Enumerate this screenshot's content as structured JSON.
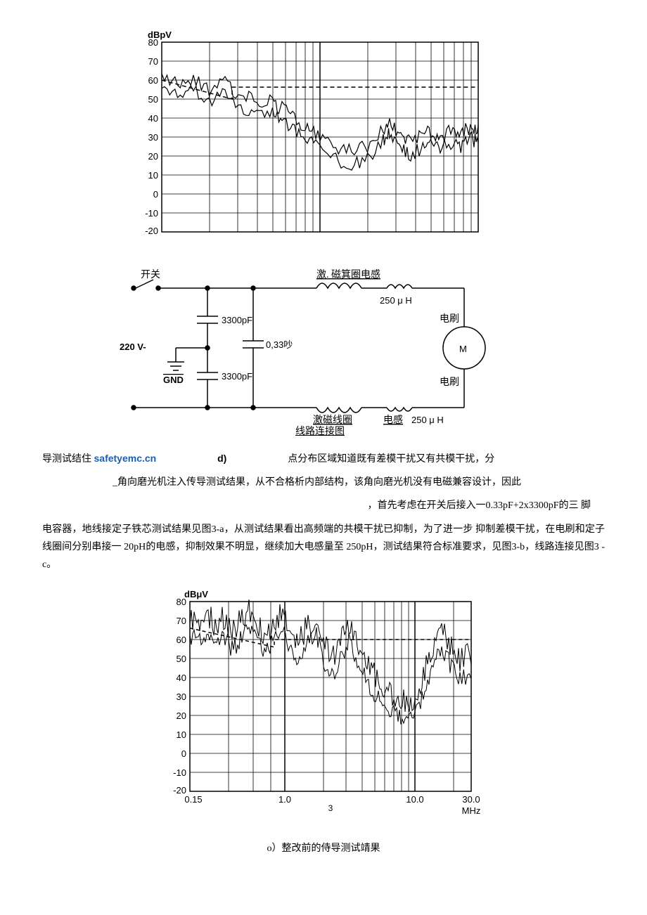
{
  "chart1": {
    "type": "line",
    "ylabel": "dBpV",
    "ylim": [
      -20,
      80
    ],
    "ytick_step": 10,
    "yticks": [
      -20,
      -10,
      0,
      10,
      20,
      30,
      40,
      50,
      60,
      70,
      80
    ],
    "x_decades": [
      0.01,
      0.1,
      1
    ],
    "background_color": "#ffffff",
    "grid_color": "#000000",
    "line_color": "#000000",
    "line_width": 1.2,
    "series_upper": [
      [
        0,
        60
      ],
      [
        5,
        58
      ],
      [
        10,
        62
      ],
      [
        15,
        55
      ],
      [
        20,
        58
      ],
      [
        25,
        52
      ],
      [
        30,
        50
      ],
      [
        35,
        48
      ],
      [
        38,
        45
      ],
      [
        42,
        40
      ],
      [
        46,
        35
      ],
      [
        50,
        30
      ],
      [
        55,
        25
      ],
      [
        60,
        22
      ],
      [
        65,
        25
      ],
      [
        70,
        35
      ],
      [
        72,
        38
      ],
      [
        75,
        32
      ],
      [
        78,
        28
      ],
      [
        82,
        30
      ],
      [
        85,
        33
      ],
      [
        88,
        30
      ],
      [
        92,
        35
      ],
      [
        95,
        32
      ],
      [
        98,
        36
      ],
      [
        100,
        34
      ]
    ],
    "series_lower": [
      [
        0,
        54
      ],
      [
        5,
        52
      ],
      [
        10,
        56
      ],
      [
        15,
        49
      ],
      [
        20,
        52
      ],
      [
        25,
        46
      ],
      [
        30,
        44
      ],
      [
        35,
        42
      ],
      [
        38,
        38
      ],
      [
        42,
        33
      ],
      [
        46,
        28
      ],
      [
        50,
        23
      ],
      [
        55,
        18
      ],
      [
        60,
        15
      ],
      [
        65,
        18
      ],
      [
        70,
        28
      ],
      [
        72,
        32
      ],
      [
        75,
        25
      ],
      [
        78,
        21
      ],
      [
        82,
        23
      ],
      [
        85,
        26
      ],
      [
        88,
        23
      ],
      [
        92,
        28
      ],
      [
        95,
        25
      ],
      [
        98,
        29
      ],
      [
        100,
        27
      ]
    ],
    "fontsize_axis": 13
  },
  "circuit": {
    "labels": {
      "switch": "开关",
      "exciter_inductor": "激. 磁箕圈电感",
      "inductor_value": "250 μ H",
      "brush": "电刷",
      "motor": "M",
      "cap1": "3300pF",
      "cap2": "0,33吵",
      "cap3": "3300pF",
      "voltage": "220 V-",
      "gnd": "GND",
      "exciter_coil": "激磁线圈",
      "inductor": "电感",
      "inductor_value2": "250 μ H",
      "bottom_caption": "线路连接图"
    },
    "line_color": "#000000",
    "line_width": 1.5
  },
  "text": {
    "para1_prefix": "导测试结住  ",
    "link_text": "safetyemc.cn",
    "fig_label_d": "d)",
    "para1_mid": "点分布区域知道既有差模干扰又有共模干扰，分",
    "para1_line2": "_角向磨光机注入传导测试结果，从不合格析内部结构，该角向磨光机没有电磁兼容设计，因此",
    "para1_line3": "，首先考虑在开关后接入一0.33pF+2x3300pF的三 脚",
    "para2": "电容器，地线接定子铁芯测试结果见图3-a，从测试结果看出高频端的共模干扰已抑制，为了进一步 抑制差模干扰，在电刷和定子线圈间分别串接一 20pH的电感，抑制效果不明显，继续加大电感量至 250pH，测试结果符合标准要求，见图3-b，线路连接见图3 -c。",
    "page_num": "3",
    "caption_o": "o）整改前的侍导测试靖果"
  },
  "chart2": {
    "type": "line",
    "ylabel": "dBμV",
    "ylim": [
      -20,
      80
    ],
    "ytick_step": 10,
    "yticks": [
      -20,
      -10,
      0,
      10,
      20,
      30,
      40,
      50,
      60,
      70,
      80
    ],
    "xlim": [
      0.15,
      30.0
    ],
    "xticks": [
      "0.15",
      "1.0",
      "10.0",
      "30.0"
    ],
    "xunit": "MHz",
    "background_color": "#ffffff",
    "grid_color": "#000000",
    "line_color": "#000000",
    "series": [
      [
        0,
        72
      ],
      [
        3,
        70
      ],
      [
        6,
        74
      ],
      [
        9,
        68
      ],
      [
        12,
        72
      ],
      [
        15,
        65
      ],
      [
        18,
        70
      ],
      [
        21,
        75
      ],
      [
        24,
        68
      ],
      [
        27,
        62
      ],
      [
        30,
        70
      ],
      [
        33,
        74
      ],
      [
        36,
        65
      ],
      [
        39,
        60
      ],
      [
        42,
        68
      ],
      [
        45,
        72
      ],
      [
        48,
        58
      ],
      [
        51,
        50
      ],
      [
        54,
        62
      ],
      [
        57,
        70
      ],
      [
        60,
        55
      ],
      [
        63,
        48
      ],
      [
        66,
        40
      ],
      [
        69,
        35
      ],
      [
        72,
        30
      ],
      [
        75,
        28
      ],
      [
        78,
        25
      ],
      [
        81,
        30
      ],
      [
        84,
        45
      ],
      [
        87,
        60
      ],
      [
        90,
        65
      ],
      [
        93,
        55
      ],
      [
        96,
        50
      ],
      [
        100,
        52
      ]
    ],
    "series_lower": [
      [
        0,
        62
      ],
      [
        3,
        60
      ],
      [
        6,
        64
      ],
      [
        9,
        58
      ],
      [
        12,
        62
      ],
      [
        15,
        55
      ],
      [
        18,
        60
      ],
      [
        21,
        65
      ],
      [
        24,
        58
      ],
      [
        27,
        52
      ],
      [
        30,
        60
      ],
      [
        33,
        64
      ],
      [
        36,
        55
      ],
      [
        39,
        50
      ],
      [
        42,
        58
      ],
      [
        45,
        62
      ],
      [
        48,
        48
      ],
      [
        51,
        40
      ],
      [
        54,
        52
      ],
      [
        57,
        60
      ],
      [
        60,
        45
      ],
      [
        63,
        38
      ],
      [
        66,
        30
      ],
      [
        69,
        25
      ],
      [
        72,
        22
      ],
      [
        75,
        20
      ],
      [
        78,
        18
      ],
      [
        81,
        22
      ],
      [
        84,
        35
      ],
      [
        87,
        50
      ],
      [
        90,
        55
      ],
      [
        93,
        45
      ],
      [
        96,
        40
      ],
      [
        100,
        42
      ]
    ],
    "limit_line": [
      [
        0,
        66
      ],
      [
        30,
        56
      ],
      [
        30,
        60
      ],
      [
        100,
        60
      ]
    ],
    "fontsize_axis": 13
  }
}
